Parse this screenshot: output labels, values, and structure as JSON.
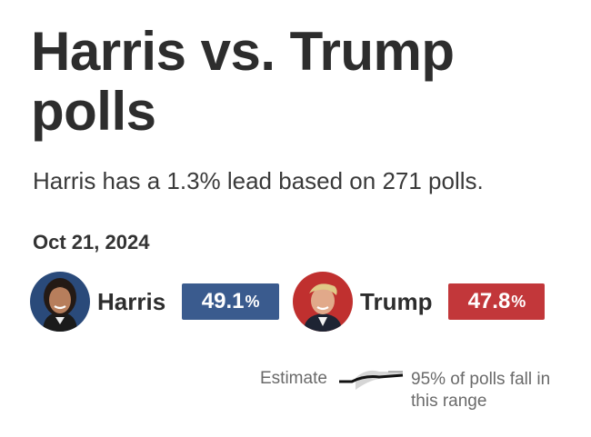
{
  "header": {
    "title": "Harris vs. Trump polls",
    "subtitle": "Harris has a 1.3% lead based on 271 polls."
  },
  "date": "Oct 21, 2024",
  "candidates": [
    {
      "name": "Harris",
      "value": "49.1",
      "unit": "%",
      "color": "#3a5b8e"
    },
    {
      "name": "Trump",
      "value": "47.8",
      "unit": "%",
      "color": "#c2373a"
    }
  ],
  "legend": {
    "estimate_label": "Estimate",
    "range_label": "95% of polls fall in this range"
  }
}
